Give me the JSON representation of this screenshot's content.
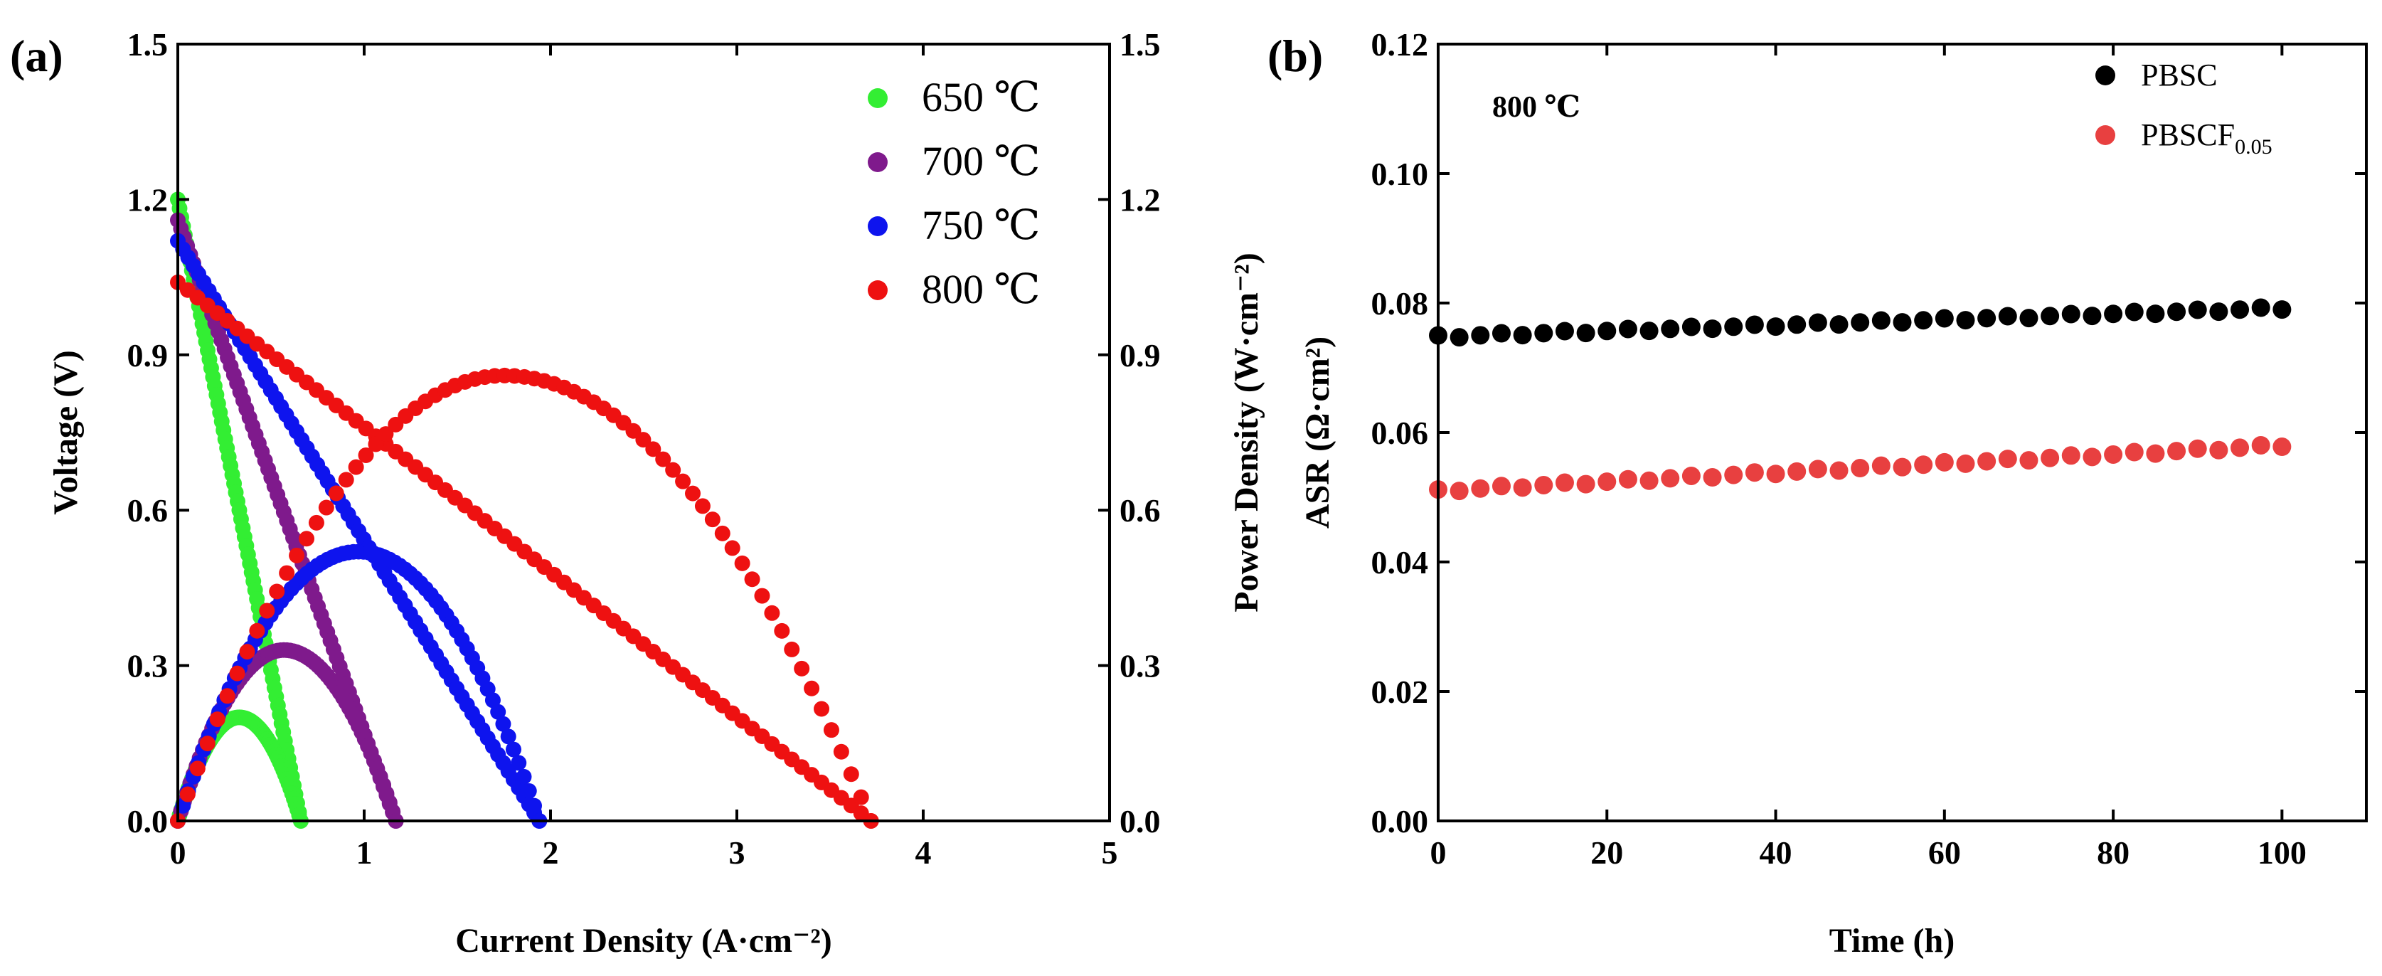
{
  "chart_data": [
    {
      "panel": "(a)",
      "type": "scatter",
      "xlabel": "Current Density (A·cm⁻²)",
      "ylabel": "Voltage (V)",
      "y2label": "Power Density (W·cm⁻²)",
      "xlim": [
        0,
        5
      ],
      "ylim": [
        0,
        1.5
      ],
      "y2lim": [
        0,
        1.5
      ],
      "xticks": [
        "0",
        "1",
        "2",
        "3",
        "4",
        "5"
      ],
      "yticks": [
        "0.0",
        "0.3",
        "0.6",
        "0.9",
        "1.2",
        "1.5"
      ],
      "y2ticks": [
        "0.0",
        "0.3",
        "0.6",
        "0.9",
        "1.2",
        "1.5"
      ],
      "legend_position": "top-right",
      "series": [
        {
          "name": "650 ℃",
          "color": "#33ee33",
          "ocv": 1.2,
          "max_current": 0.66,
          "peak_current": 0.33,
          "peak_power": 0.2
        },
        {
          "name": "700 ℃",
          "color": "#7f1a8c",
          "ocv": 1.16,
          "max_current": 1.17,
          "peak_current": 0.57,
          "peak_power": 0.33
        },
        {
          "name": "750 ℃",
          "color": "#0e14ee",
          "ocv": 1.12,
          "max_current": 1.94,
          "peak_current": 0.97,
          "peak_power": 0.52
        },
        {
          "name": "800 ℃",
          "color": "#ee1111",
          "ocv": 1.04,
          "max_current": 3.72,
          "peak_current": 1.75,
          "peak_power": 0.86
        }
      ]
    },
    {
      "panel": "(b)",
      "type": "scatter",
      "xlabel": "Time (h)",
      "ylabel": "ASR (Ω·cm²)",
      "xlim": [
        0,
        110
      ],
      "ylim": [
        0,
        0.12
      ],
      "xticks": [
        "0",
        "20",
        "40",
        "60",
        "80",
        "100"
      ],
      "yticks": [
        "0.00",
        "0.02",
        "0.04",
        "0.06",
        "0.08",
        "0.10",
        "0.12"
      ],
      "annotation": "800 ℃",
      "legend_position": "top-right",
      "series": [
        {
          "name": "PBSC",
          "color": "#000000",
          "x_start": 0,
          "x_end": 100,
          "y_start": 0.0748,
          "y_end": 0.0792
        },
        {
          "name": "PBSCF",
          "subscript": "0.05",
          "color": "#e84040",
          "x_start": 0,
          "x_end": 100,
          "y_start": 0.051,
          "y_end": 0.058
        }
      ]
    }
  ]
}
